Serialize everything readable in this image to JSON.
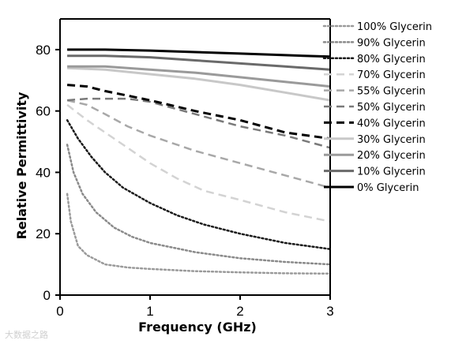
{
  "chart_data": {
    "type": "line",
    "title": "",
    "xlabel": "Frequency (GHz)",
    "ylabel": "Relative Permittivity",
    "xlim": [
      0,
      3
    ],
    "ylim": [
      0,
      90
    ],
    "xticks": [
      0,
      1,
      2,
      3
    ],
    "yticks": [
      0,
      20,
      40,
      60,
      80
    ],
    "xtick_labels": [
      "0",
      "1",
      "2",
      "3"
    ],
    "ytick_labels": [
      "0",
      "20",
      "40",
      "60",
      "80"
    ],
    "grid": false,
    "legend_position": "right",
    "series": [
      {
        "name": "100% Glycerin",
        "color": "#9a9a9a",
        "dash": "dot",
        "width": 2.5,
        "x": [
          0.08,
          0.12,
          0.2,
          0.3,
          0.5,
          0.75,
          1.0,
          1.5,
          2.0,
          2.5,
          3.0
        ],
        "y": [
          33,
          24,
          16,
          13,
          10,
          9,
          8.5,
          7.8,
          7.4,
          7.1,
          7
        ]
      },
      {
        "name": "90% Glycerin",
        "color": "#8a8a8a",
        "dash": "dot",
        "width": 2.5,
        "x": [
          0.08,
          0.15,
          0.25,
          0.4,
          0.6,
          0.8,
          1.0,
          1.5,
          2.0,
          2.5,
          3.0
        ],
        "y": [
          49,
          40,
          33,
          27,
          22,
          19,
          17,
          14,
          12,
          10.8,
          10
        ]
      },
      {
        "name": "80% Glycerin",
        "color": "#1a1a1a",
        "dash": "dot",
        "width": 2.5,
        "x": [
          0.08,
          0.2,
          0.35,
          0.5,
          0.7,
          1.0,
          1.3,
          1.6,
          2.0,
          2.5,
          3.0
        ],
        "y": [
          57,
          51,
          45,
          40,
          35,
          30,
          26,
          23,
          20,
          17,
          15
        ]
      },
      {
        "name": "70% Glycerin",
        "color": "#d3d3d3",
        "dash": "longdash",
        "width": 2.5,
        "x": [
          0.08,
          0.3,
          0.5,
          0.75,
          1.0,
          1.3,
          1.6,
          2.0,
          2.5,
          3.0
        ],
        "y": [
          62,
          57,
          53,
          48,
          43,
          38,
          34,
          31,
          27,
          24
        ]
      },
      {
        "name": "55% Glycerin",
        "color": "#a8a8a8",
        "dash": "longdash",
        "width": 2.5,
        "x": [
          0.08,
          0.3,
          0.5,
          0.75,
          1.0,
          1.5,
          2.0,
          2.5,
          3.0
        ],
        "y": [
          63.5,
          62,
          59,
          55,
          52,
          47,
          43,
          39,
          35
        ]
      },
      {
        "name": "50% Glycerin",
        "color": "#7a7a7a",
        "dash": "longdash",
        "width": 2.5,
        "x": [
          0.08,
          0.3,
          0.5,
          0.75,
          1.0,
          1.5,
          2.0,
          2.5,
          3.0
        ],
        "y": [
          63.5,
          64,
          64,
          64,
          63,
          59,
          55,
          52,
          48
        ]
      },
      {
        "name": "40% Glycerin",
        "color": "#000000",
        "dash": "longdash",
        "width": 3,
        "x": [
          0.08,
          0.3,
          0.5,
          0.75,
          1.0,
          1.5,
          2.0,
          2.5,
          3.0
        ],
        "y": [
          68.5,
          68,
          66.5,
          65,
          63.5,
          60,
          57,
          53,
          51
        ]
      },
      {
        "name": "30% Glycerin",
        "color": "#c8c8c8",
        "dash": "solid",
        "width": 3,
        "x": [
          0.08,
          0.5,
          1.0,
          1.5,
          2.0,
          2.5,
          3.0
        ],
        "y": [
          74,
          73.5,
          72,
          70.5,
          68.5,
          66,
          63.5
        ]
      },
      {
        "name": "20% Glycerin",
        "color": "#9a9a9a",
        "dash": "solid",
        "width": 3,
        "x": [
          0.08,
          0.5,
          1.0,
          1.5,
          2.0,
          2.5,
          3.0
        ],
        "y": [
          74.5,
          74.5,
          73.5,
          72.5,
          71,
          69.5,
          68
        ]
      },
      {
        "name": "10% Glycerin",
        "color": "#6a6a6a",
        "dash": "solid",
        "width": 3,
        "x": [
          0.08,
          0.5,
          1.0,
          1.5,
          2.0,
          2.5,
          3.0
        ],
        "y": [
          78,
          78,
          77.5,
          76.5,
          75.5,
          74.5,
          73.5
        ]
      },
      {
        "name": "0% Glycerin",
        "color": "#000000",
        "dash": "solid",
        "width": 3,
        "x": [
          0.08,
          0.5,
          1.0,
          1.5,
          2.0,
          2.5,
          3.0
        ],
        "y": [
          80,
          80,
          79.7,
          79.2,
          78.7,
          78.2,
          77.7
        ]
      }
    ]
  },
  "watermark": "大数据之路"
}
